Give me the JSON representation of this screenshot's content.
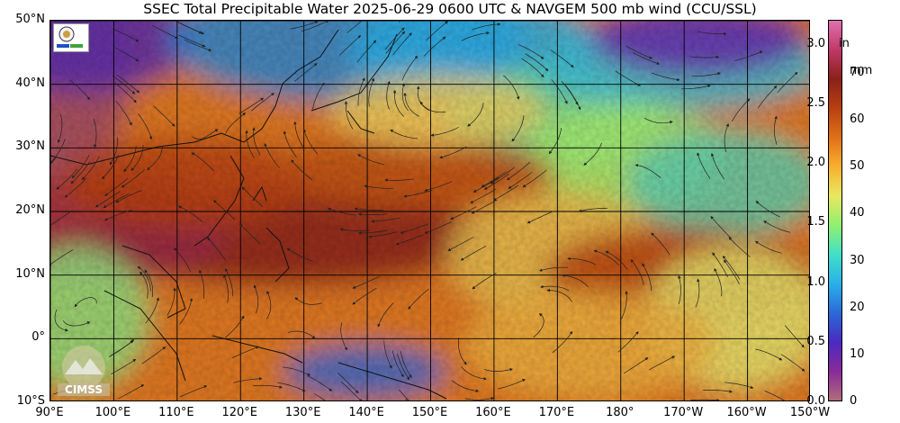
{
  "title": "SSEC Total Precipitable Water  2025-06-29 0600 UTC & NAVGEM 500 mb wind (CCU/SSL)",
  "map": {
    "lat_labels": [
      "50°N",
      "40°N",
      "30°N",
      "20°N",
      "10°N",
      "0°",
      "10°S"
    ],
    "lon_labels": [
      "90°E",
      "100°E",
      "110°E",
      "120°E",
      "130°E",
      "140°E",
      "150°E",
      "160°E",
      "170°E",
      "180°",
      "170°W",
      "160°W",
      "150°W"
    ],
    "extent": {
      "lon_min": 90,
      "lon_max": 210,
      "lat_min": -10,
      "lat_max": 50
    }
  },
  "colorbar": {
    "inch_ticks": [
      "3.0",
      "2.5",
      "2.0",
      "1.5",
      "1.0",
      "0.5",
      "0.0"
    ],
    "inch_unit": "in",
    "mm_ticks": [
      "70",
      "60",
      "50",
      "40",
      "30",
      "20",
      "10",
      "0"
    ],
    "mm_unit": "mm",
    "colors": [
      "#b06c7c",
      "#8a2a9a",
      "#4a2ac0",
      "#2a6ad8",
      "#2ab0e8",
      "#40e0c8",
      "#90f070",
      "#e8e860",
      "#f8b030",
      "#e07018",
      "#b84010",
      "#8a2018",
      "#c03868",
      "#e070b0"
    ]
  },
  "logos": {
    "cimss": "CIMSS",
    "ssec": "SSEC Lab"
  }
}
